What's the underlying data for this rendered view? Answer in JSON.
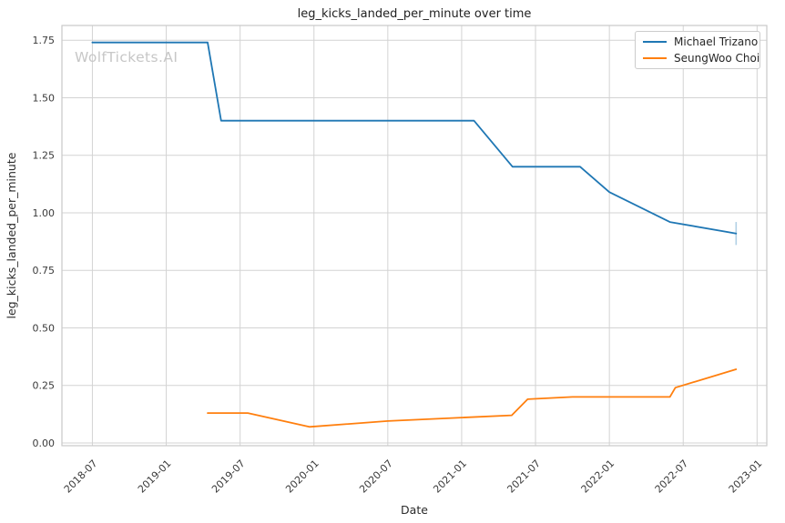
{
  "watermark": "WolfTickets.AI",
  "chart_data": {
    "type": "line",
    "title": "leg_kicks_landed_per_minute over time",
    "xlabel": "Date",
    "ylabel": "leg_kicks_landed_per_minute",
    "grid": true,
    "legend_position": "upper right",
    "x_ticks": [
      "2018-07",
      "2019-01",
      "2019-07",
      "2020-01",
      "2020-07",
      "2021-01",
      "2021-07",
      "2022-01",
      "2022-07",
      "2023-01"
    ],
    "y_ticks": [
      "0.00",
      "0.25",
      "0.50",
      "0.75",
      "1.00",
      "1.25",
      "1.50",
      "1.75"
    ],
    "xlim": [
      "2018-04-17",
      "2023-01-25"
    ],
    "ylim": [
      -0.012,
      1.814
    ],
    "series": [
      {
        "name": "Michael Trizano",
        "color": "#1f77b4",
        "points": [
          [
            "2018-07-01",
            1.74
          ],
          [
            "2019-04-12",
            1.74
          ],
          [
            "2019-05-15",
            1.4
          ],
          [
            "2021-02-01",
            1.4
          ],
          [
            "2021-05-05",
            1.2
          ],
          [
            "2021-10-20",
            1.2
          ],
          [
            "2022-01-01",
            1.09
          ],
          [
            "2022-05-29",
            0.96
          ],
          [
            "2022-11-10",
            0.91
          ]
        ],
        "error_bar": {
          "x": "2022-11-10",
          "low": 0.86,
          "high": 0.96,
          "opacity": 0.35
        }
      },
      {
        "name": "SeungWoo Choi",
        "color": "#ff7f0e",
        "points": [
          [
            "2019-04-12",
            0.13
          ],
          [
            "2019-07-20",
            0.13
          ],
          [
            "2019-12-20",
            0.07
          ],
          [
            "2020-07-01",
            0.095
          ],
          [
            "2021-01-01",
            0.11
          ],
          [
            "2021-05-03",
            0.12
          ],
          [
            "2021-06-12",
            0.19
          ],
          [
            "2021-10-01",
            0.2
          ],
          [
            "2022-05-29",
            0.2
          ],
          [
            "2022-06-12",
            0.24
          ],
          [
            "2022-11-10",
            0.32
          ]
        ]
      }
    ]
  }
}
